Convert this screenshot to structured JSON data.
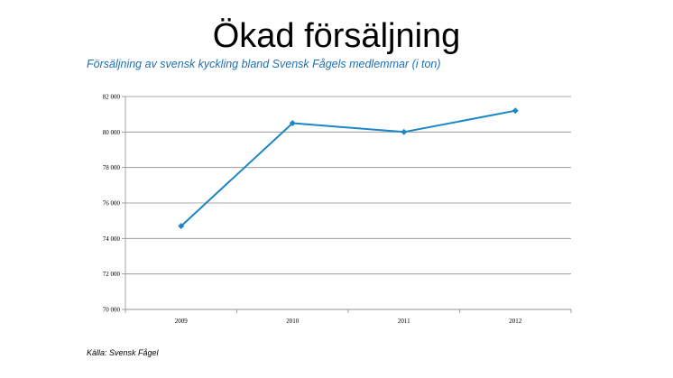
{
  "title": "Ökad försäljning",
  "subtitle": "Försäljning av svensk kyckling bland Svensk Fågels medlemmar (i ton)",
  "source": "Källa: Svensk Fågel",
  "colors": {
    "series": "#1a86c8",
    "subtitle": "#1f6fb2",
    "grid": "#8c8c8c"
  },
  "chart_data": {
    "type": "line",
    "title": "",
    "xlabel": "",
    "ylabel": "",
    "categories": [
      "2009",
      "2010",
      "2011",
      "2012"
    ],
    "series": [
      {
        "values": [
          74700,
          80500,
          80000,
          81200
        ]
      }
    ],
    "ylim": [
      70000,
      82000
    ],
    "yticks": [
      70000,
      72000,
      74000,
      76000,
      78000,
      80000,
      82000
    ],
    "ytick_labels": [
      "70 000",
      "72 000",
      "74 000",
      "76 000",
      "78 000",
      "80 000",
      "82 000"
    ],
    "grid": true,
    "legend": "none",
    "markers": "diamond"
  }
}
